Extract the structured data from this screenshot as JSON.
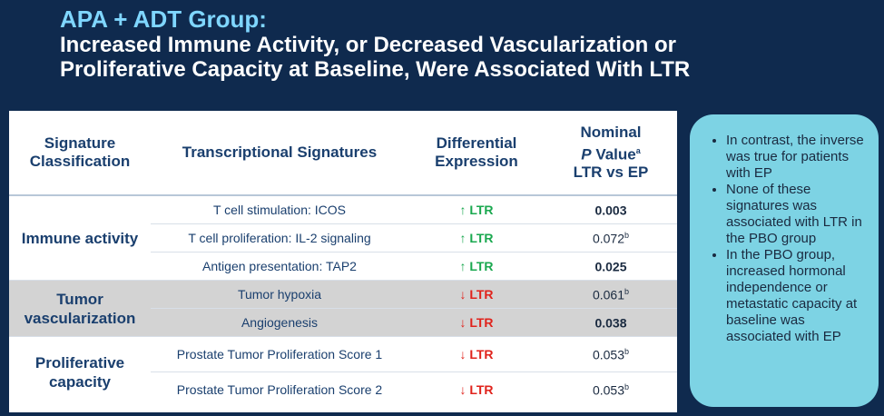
{
  "title": {
    "line1": "APA + ADT Group:",
    "line2a": "Increased Immune Activity, or Decreased Vascularization or",
    "line2b": "Proliferative Capacity at Baseline, Were Associated With LTR"
  },
  "table": {
    "headers": {
      "classification_1": "Signature",
      "classification_2": "Classification",
      "signatures": "Transcriptional Signatures",
      "expression_1": "Differential",
      "expression_2": "Expression",
      "p_1": "Nominal",
      "p_2_italic": "P",
      "p_2_rest": " Value",
      "p_2_sup": "a",
      "p_3": "LTR vs EP"
    },
    "groups": {
      "immune": "Immune activity",
      "vascular_1": "Tumor",
      "vascular_2": "vascularization",
      "prolif_1": "Proliferative",
      "prolif_2": "capacity"
    },
    "rows": [
      {
        "signature": "T cell stimulation: ICOS",
        "arrow": "↑",
        "expression": "LTR",
        "p": "0.003",
        "sup": ""
      },
      {
        "signature": "T cell proliferation: IL-2 signaling",
        "arrow": "↑",
        "expression": "LTR",
        "p": "0.072",
        "sup": "b"
      },
      {
        "signature": "Antigen presentation: TAP2",
        "arrow": "↑",
        "expression": "LTR",
        "p": "0.025",
        "sup": ""
      },
      {
        "signature": "Tumor hypoxia",
        "arrow": "↓",
        "expression": "LTR",
        "p": "0.061",
        "sup": "b"
      },
      {
        "signature": "Angiogenesis",
        "arrow": "↓",
        "expression": "LTR",
        "p": "0.038",
        "sup": ""
      },
      {
        "signature": "Prostate Tumor Proliferation Score 1",
        "arrow": "↓",
        "expression": "LTR",
        "p": "0.053",
        "sup": "b"
      },
      {
        "signature": "Prostate Tumor Proliferation Score 2",
        "arrow": "↓",
        "expression": "LTR",
        "p": "0.053",
        "sup": "b"
      }
    ]
  },
  "callout": {
    "items": [
      "In contrast, the inverse was true for patients with EP",
      "None of these signatures was associated with LTR in the PBO group",
      "In the PBO group, increased hormonal independence or metastatic capacity at baseline was associated with EP"
    ]
  },
  "colors": {
    "background": "#0f2a4e",
    "title_accent": "#7fd6ff",
    "up": "#1aa84f",
    "down": "#e0231c",
    "callout": "#7dd3e4"
  }
}
